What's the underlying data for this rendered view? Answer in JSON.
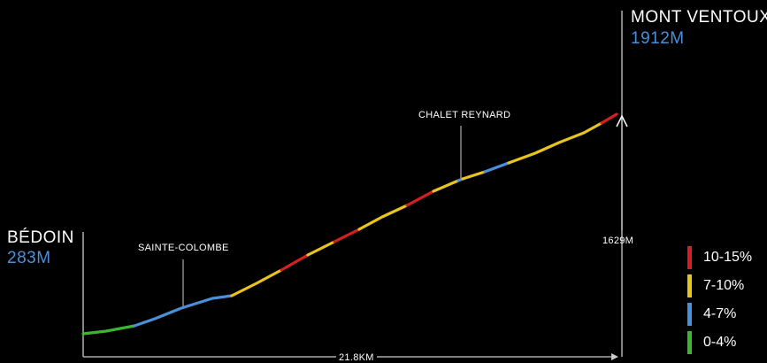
{
  "start": {
    "name": "BÉDOIN",
    "altitude": "283M"
  },
  "finish": {
    "name": "MONT VENTOUX",
    "altitude": "1912M"
  },
  "waypoints": [
    {
      "name": "SAINTE-COLOMBE"
    },
    {
      "name": "CHALET REYNARD"
    }
  ],
  "elevation_gain": "1629M",
  "distance": "21.8KM",
  "legend": [
    {
      "label": "10-15%",
      "color": "#d42020"
    },
    {
      "label": "7-10%",
      "color": "#e8c41c"
    },
    {
      "label": "4-7%",
      "color": "#4a90d9"
    },
    {
      "label": "0-4%",
      "color": "#3cb530"
    }
  ],
  "colors": {
    "background": "#000000",
    "text": "#ffffff",
    "altitude_text": "#4a90d9",
    "axis": "#cccccc"
  }
}
